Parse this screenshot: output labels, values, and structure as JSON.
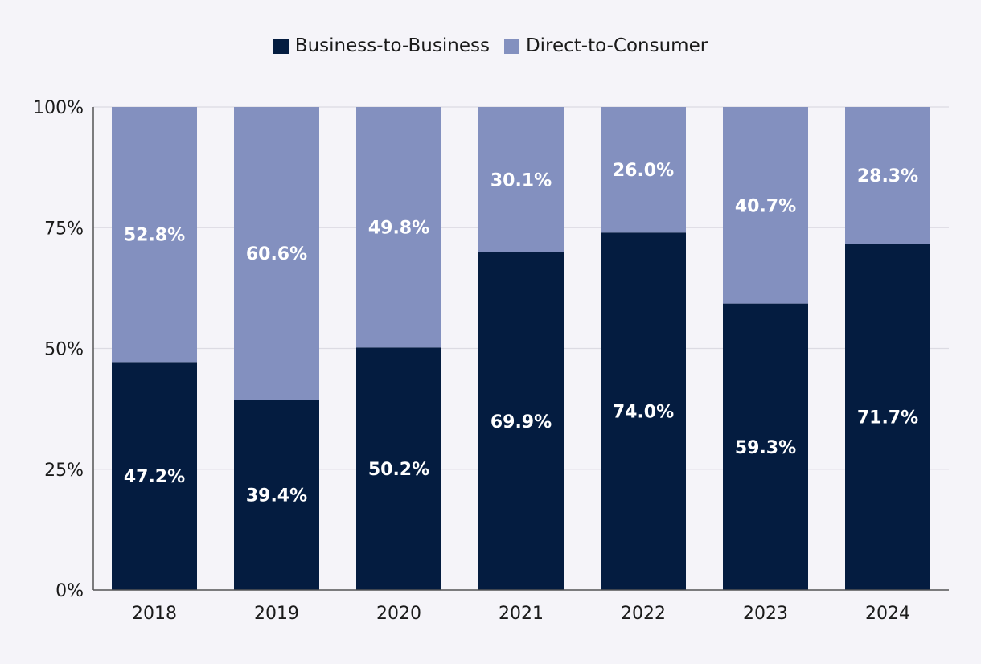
{
  "chart_data": {
    "type": "bar",
    "stacked": true,
    "categories": [
      "2018",
      "2019",
      "2020",
      "2021",
      "2022",
      "2023",
      "2024"
    ],
    "series": [
      {
        "name": "Business-to-Business",
        "values": [
          47.2,
          39.4,
          50.2,
          69.9,
          74.0,
          59.3,
          71.7
        ],
        "labels": [
          "47.2%",
          "39.4%",
          "50.2%",
          "69.9%",
          "74.0%",
          "59.3%",
          "71.7%"
        ],
        "color": "#041c40"
      },
      {
        "name": "Direct-to-Consumer",
        "values": [
          52.8,
          60.6,
          49.8,
          30.1,
          26.0,
          40.7,
          28.3
        ],
        "labels": [
          "52.8%",
          "60.6%",
          "49.8%",
          "30.1%",
          "26.0%",
          "40.7%",
          "28.3%"
        ],
        "color": "#8390bf"
      }
    ],
    "ylim": [
      0,
      100
    ],
    "yticks": [
      0,
      25,
      50,
      75,
      100
    ],
    "ytick_labels": [
      "0%",
      "25%",
      "50%",
      "75%",
      "100%"
    ],
    "grid": true,
    "legend_position": "top-center",
    "title": "",
    "xlabel": "",
    "ylabel": ""
  }
}
